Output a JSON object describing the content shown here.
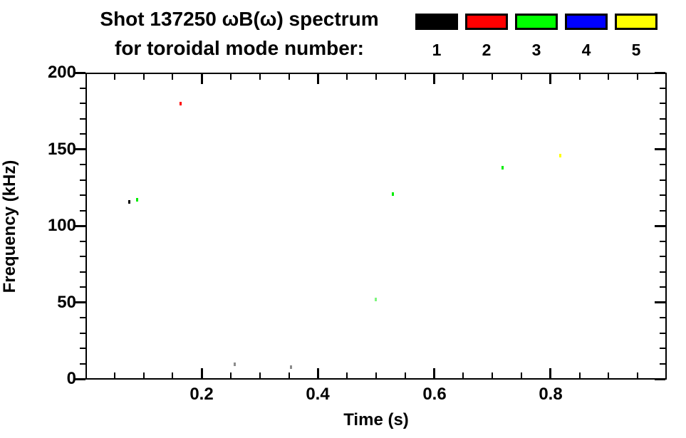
{
  "title": {
    "line1": "Shot 137250 ωB(ω) spectrum",
    "line2": "for toroidal mode number:"
  },
  "legend": {
    "entries": [
      {
        "label": "1",
        "color": "#000000"
      },
      {
        "label": "2",
        "color": "#ff0000"
      },
      {
        "label": "3",
        "color": "#00ff00"
      },
      {
        "label": "4",
        "color": "#0000ff"
      },
      {
        "label": "5",
        "color": "#ffff00"
      }
    ]
  },
  "axes": {
    "xlabel": "Time (s)",
    "ylabel": "Frequency (kHz)"
  },
  "chart_data": {
    "type": "scatter",
    "title": "Shot 137250 ωB(ω) spectrum for toroidal mode number:",
    "xlabel": "Time (s)",
    "ylabel": "Frequency (kHz)",
    "xlim": [
      0,
      1.0
    ],
    "ylim": [
      0,
      200
    ],
    "x_major_ticks": [
      0.2,
      0.4,
      0.6,
      0.8
    ],
    "x_minor_step": 0.05,
    "y_major_ticks": [
      0,
      50,
      100,
      150,
      200
    ],
    "y_minor_step": 10,
    "grid": false,
    "legend_position": "top-right-above-plot",
    "legend_labels": [
      "1",
      "2",
      "3",
      "4",
      "5"
    ],
    "legend_colors": [
      "#000000",
      "#ff0000",
      "#00ff00",
      "#0000ff",
      "#ffff00"
    ],
    "series": [
      {
        "name": "1",
        "color": "#000000",
        "points": [
          {
            "t": 0.075,
            "f": 116,
            "alpha": 1
          },
          {
            "t": 0.256,
            "f": 10,
            "alpha": 0.45
          },
          {
            "t": 0.353,
            "f": 8,
            "alpha": 0.45
          }
        ]
      },
      {
        "name": "2",
        "color": "#ff0000",
        "points": [
          {
            "t": 0.163,
            "f": 180,
            "alpha": 1
          }
        ]
      },
      {
        "name": "3",
        "color": "#00ee00",
        "points": [
          {
            "t": 0.088,
            "f": 117,
            "alpha": 1
          },
          {
            "t": 0.499,
            "f": 52,
            "alpha": 0.5
          },
          {
            "t": 0.528,
            "f": 121,
            "alpha": 1
          },
          {
            "t": 0.717,
            "f": 138,
            "alpha": 1
          }
        ]
      },
      {
        "name": "4",
        "color": "#0000ff",
        "points": []
      },
      {
        "name": "5",
        "color": "#ffff00",
        "points": [
          {
            "t": 0.816,
            "f": 146,
            "alpha": 1
          }
        ]
      }
    ]
  }
}
